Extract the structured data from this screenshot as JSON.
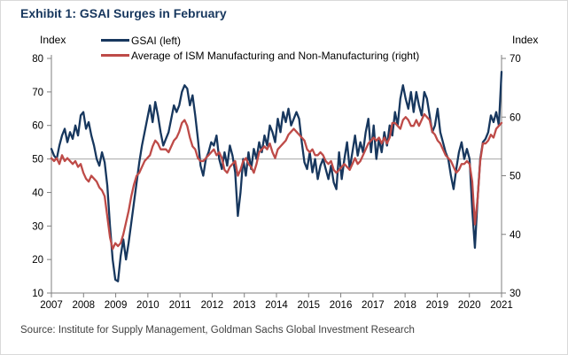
{
  "title": "Exhibit 1: GSAI Surges in February",
  "left_axis_label": "Index",
  "right_axis_label": "Index",
  "source": "Source: Institute for Supply Management, Goldman Sachs Global Investment Research",
  "colors": {
    "title": "#17375e",
    "axis": "#7f7f7f",
    "reference_line": "#a6a6a6",
    "tick_text": "#000000",
    "source_text": "#404040"
  },
  "chart_data": {
    "type": "line",
    "title": "Exhibit 1: GSAI Surges in February",
    "x_start": "2007-01",
    "x_end": "2021-02",
    "x_tick_labels": [
      "2007",
      "2008",
      "2009",
      "2010",
      "2011",
      "2012",
      "2013",
      "2014",
      "2015",
      "2016",
      "2017",
      "2018",
      "2019",
      "2020",
      "2021"
    ],
    "left_axis": {
      "label": "Index",
      "min": 10,
      "max": 80,
      "ticks": [
        80,
        70,
        60,
        50,
        40,
        30,
        20,
        10
      ]
    },
    "right_axis": {
      "label": "Index",
      "min": 30,
      "max": 70,
      "ticks": [
        70,
        60,
        50,
        40,
        30
      ]
    },
    "reference_line_left_value": 50,
    "grid": false,
    "legend_position": "top",
    "series": [
      {
        "name": "GSAI (left)",
        "axis": "left",
        "color": "#17375e",
        "values": [
          53,
          51,
          50,
          54,
          57,
          59,
          55,
          58,
          56,
          60,
          57,
          63,
          64,
          59,
          61,
          57,
          54,
          50,
          48,
          52,
          49,
          42,
          30,
          20,
          14,
          13.5,
          21,
          26,
          20,
          25,
          31,
          37,
          43,
          49,
          54,
          58,
          62,
          66,
          61,
          67,
          63,
          58,
          54,
          56,
          58,
          62,
          66,
          64,
          66,
          70,
          72,
          71,
          66,
          69,
          63,
          56,
          48,
          45,
          50,
          52,
          55,
          54,
          57,
          50,
          47,
          52,
          48,
          54,
          51,
          46,
          33,
          40,
          50,
          45,
          52,
          47,
          53,
          50,
          55,
          52,
          57,
          54,
          60,
          58,
          55,
          62,
          58,
          64,
          61,
          65,
          60,
          62,
          64,
          62,
          55,
          49,
          47,
          52,
          46,
          50,
          44,
          48,
          50,
          47,
          44,
          48,
          43,
          41,
          52,
          44,
          50,
          55,
          47,
          52,
          57,
          51,
          55,
          52,
          58,
          62,
          52,
          60,
          50,
          56,
          52,
          58,
          54,
          60,
          57,
          64,
          60,
          68,
          72,
          68,
          65,
          70,
          64,
          70,
          66,
          63,
          70,
          68,
          63,
          58,
          60,
          65,
          58,
          55,
          52,
          50,
          45,
          41,
          47,
          52,
          55,
          50,
          53,
          50,
          35,
          23.5,
          38,
          50,
          55,
          56,
          58,
          63,
          61,
          64,
          60,
          76
        ]
      },
      {
        "name": "Average of ISM Manufacturing and Non-Manufacturing (right)",
        "axis": "right",
        "color": "#be4b48",
        "values": [
          53,
          52.5,
          53,
          52,
          53.5,
          52.5,
          53,
          52.5,
          52,
          52.5,
          51.5,
          52,
          50.5,
          49.5,
          49,
          50,
          49.5,
          49,
          48,
          47.5,
          46.5,
          43,
          39.5,
          37.5,
          38.5,
          38,
          38.5,
          40,
          42,
          44,
          46.5,
          48.5,
          50,
          50.5,
          51.5,
          52.5,
          53,
          53.5,
          55,
          56,
          55.5,
          54.5,
          54.5,
          54.5,
          54,
          55,
          56,
          56.5,
          57.5,
          59,
          59.5,
          58.5,
          56.5,
          55,
          54.5,
          53,
          52.5,
          52.5,
          53,
          53.5,
          54,
          54.5,
          53.5,
          54,
          53,
          51,
          50.5,
          51.5,
          52,
          52.5,
          50,
          51,
          52.5,
          53,
          52,
          51.5,
          50.5,
          52,
          54,
          54.5,
          55,
          54.5,
          55.5,
          54,
          53,
          54.5,
          55,
          55.5,
          56,
          57,
          57.5,
          58,
          57.5,
          57,
          56.5,
          56,
          54.5,
          54,
          54.5,
          53.5,
          53.5,
          54,
          53.5,
          52.5,
          52,
          52.5,
          51,
          50.5,
          51,
          51.5,
          52,
          51.5,
          51,
          52,
          53,
          52,
          52.5,
          53.5,
          54.5,
          55.5,
          56,
          56.5,
          56,
          56.5,
          55.5,
          56.5,
          55.5,
          56.5,
          59,
          59,
          58.5,
          58,
          59.5,
          60,
          59.5,
          58.5,
          58.5,
          59.5,
          58.5,
          59.5,
          60.5,
          60,
          59.5,
          57.5,
          57,
          56,
          55.5,
          54.5,
          53.5,
          53,
          52.5,
          51.5,
          50.5,
          51,
          52,
          52,
          52.5,
          52,
          49,
          41.7,
          46,
          52.5,
          55.5,
          55.5,
          56,
          57,
          56.5,
          58,
          58.5,
          59
        ]
      }
    ]
  }
}
